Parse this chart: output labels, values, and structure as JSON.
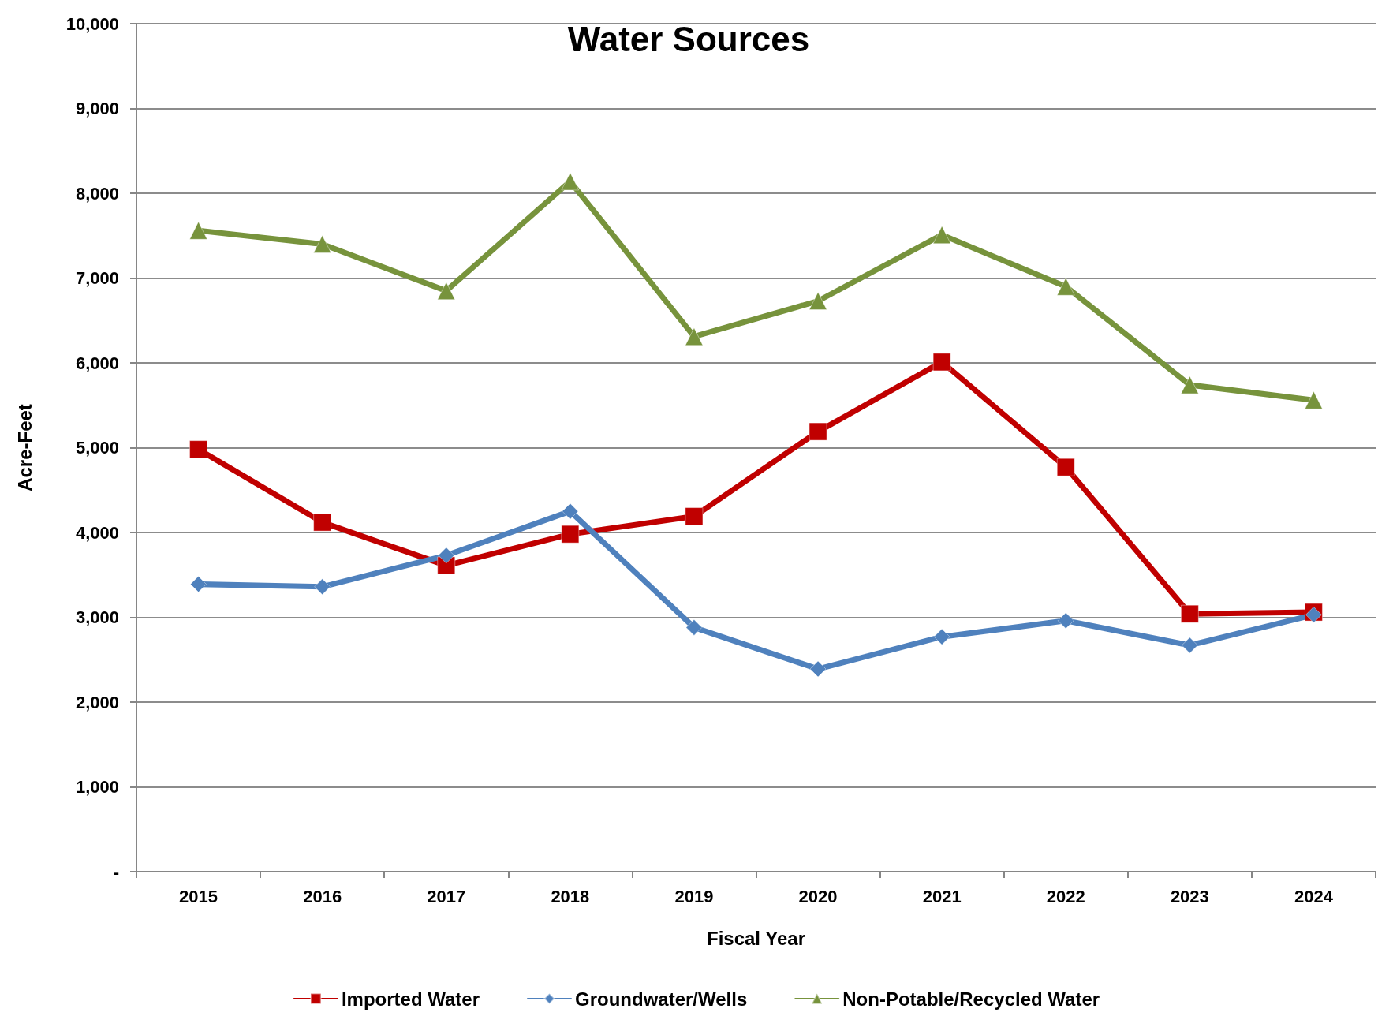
{
  "chart_data": {
    "type": "line",
    "title": "Water Sources",
    "xlabel": "Fiscal Year",
    "ylabel": "Acre-Feet",
    "categories": [
      "2015",
      "2016",
      "2017",
      "2018",
      "2019",
      "2020",
      "2021",
      "2022",
      "2023",
      "2024"
    ],
    "series": [
      {
        "name": "Imported Water",
        "color": "#c00000",
        "marker": "square",
        "values": [
          4980,
          4120,
          3610,
          3980,
          4190,
          5190,
          6010,
          4770,
          3040,
          3060
        ]
      },
      {
        "name": "Groundwater/Wells",
        "color": "#4f81bd",
        "marker": "diamond",
        "values": [
          3390,
          3360,
          3730,
          4250,
          2880,
          2390,
          2770,
          2960,
          2670,
          3030
        ]
      },
      {
        "name": "Non-Potable/Recycled Water",
        "color": "#77933c",
        "marker": "triangle",
        "values": [
          7560,
          7400,
          6850,
          8140,
          6310,
          6730,
          7510,
          6900,
          5740,
          5560
        ]
      }
    ],
    "ylim": [
      0,
      10000
    ],
    "yticks": [
      {
        "value": 0,
        "label": "-"
      },
      {
        "value": 1000,
        "label": "1,000"
      },
      {
        "value": 2000,
        "label": "2,000"
      },
      {
        "value": 3000,
        "label": "3,000"
      },
      {
        "value": 4000,
        "label": "4,000"
      },
      {
        "value": 5000,
        "label": "5,000"
      },
      {
        "value": 6000,
        "label": "6,000"
      },
      {
        "value": 7000,
        "label": "7,000"
      },
      {
        "value": 8000,
        "label": "8,000"
      },
      {
        "value": 9000,
        "label": "9,000"
      },
      {
        "value": 10000,
        "label": "10,000"
      }
    ],
    "grid": "y",
    "legend": "bottom"
  }
}
